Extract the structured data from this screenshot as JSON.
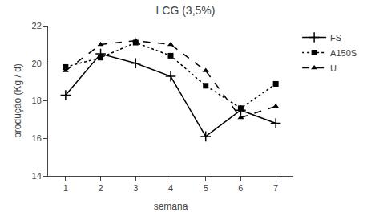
{
  "chart_data": {
    "type": "line",
    "title": "LCG (3,5%)",
    "xlabel": "semana",
    "ylabel": "produção (Kg / d)",
    "x": [
      1,
      2,
      3,
      4,
      5,
      6,
      7
    ],
    "series": [
      {
        "name": "FS",
        "color": "#000000",
        "marker": "plus",
        "line_style": "solid",
        "values": [
          18.3,
          20.5,
          20.0,
          19.3,
          16.1,
          17.5,
          16.8
        ]
      },
      {
        "name": "A150S",
        "color": "#000000",
        "marker": "square",
        "line_style": "dotted",
        "values": [
          19.8,
          20.3,
          21.1,
          20.4,
          18.8,
          17.6,
          18.9
        ]
      },
      {
        "name": "U",
        "color": "#000000",
        "marker": "triangle",
        "line_style": "dashed",
        "values": [
          19.6,
          21.0,
          21.2,
          21.0,
          19.6,
          17.1,
          17.7
        ]
      }
    ],
    "xlim": [
      0.5,
      7.5
    ],
    "xticks": [
      1,
      2,
      3,
      4,
      5,
      6,
      7
    ],
    "ylim": [
      14,
      22
    ],
    "yticks": [
      14,
      16,
      18,
      20,
      22
    ],
    "grid": false,
    "legend": "right"
  }
}
